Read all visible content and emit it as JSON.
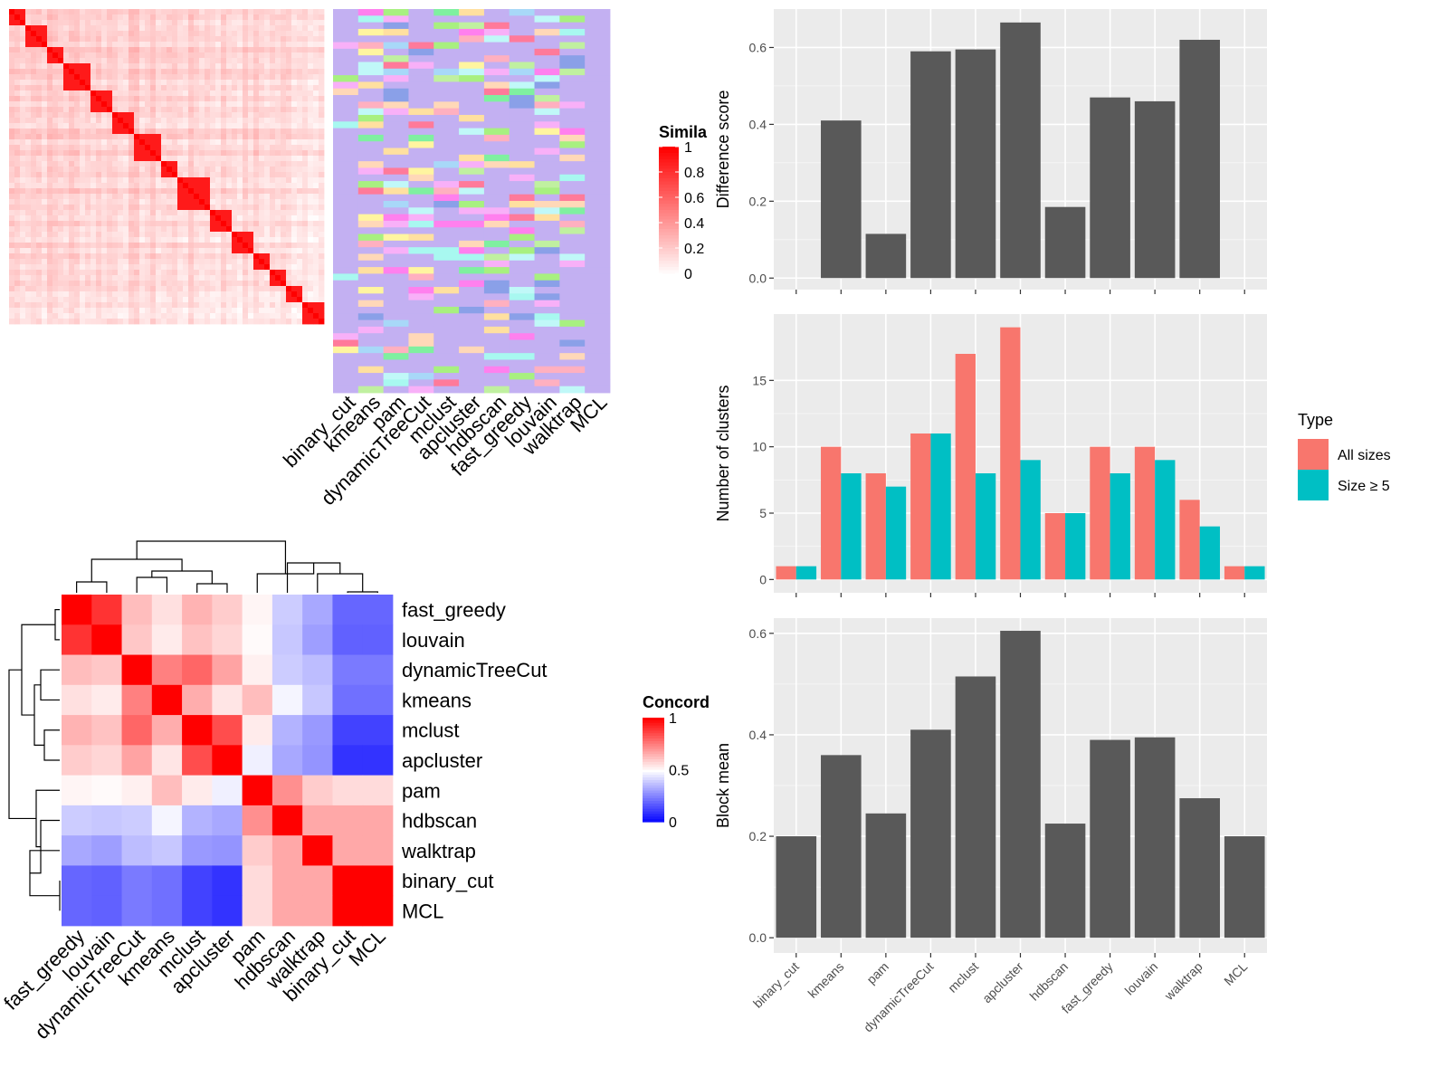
{
  "methods_x": [
    "binary_cut",
    "kmeans",
    "pam",
    "dynamicTreeCut",
    "mclust",
    "apcluster",
    "hdbscan",
    "fast_greedy",
    "louvain",
    "walktrap",
    "MCL"
  ],
  "similarity_legend": {
    "title": "Simila",
    "ticks": [
      "1",
      "0.8",
      "0.6",
      "0.4",
      "0.2",
      "0"
    ]
  },
  "concordance_legend": {
    "title": "Concord",
    "ticks": [
      "1",
      "0.5",
      "0"
    ]
  },
  "type_legend": {
    "title": "Type",
    "items": [
      {
        "label": "All sizes",
        "color": "#F8766D"
      },
      {
        "label": "Size ≥ 5",
        "color": "#00BFC4"
      }
    ]
  },
  "concordance_order": [
    "fast_greedy",
    "louvain",
    "dynamicTreeCut",
    "kmeans",
    "mclust",
    "apcluster",
    "pam",
    "hdbscan",
    "walktrap",
    "binary_cut",
    "MCL"
  ],
  "chart_data": [
    {
      "type": "bar",
      "categories": [
        "binary_cut",
        "kmeans",
        "pam",
        "dynamicTreeCut",
        "mclust",
        "apcluster",
        "hdbscan",
        "fast_greedy",
        "louvain",
        "walktrap",
        "MCL"
      ],
      "values": [
        0,
        0.41,
        0.115,
        0.59,
        0.595,
        0.665,
        0.185,
        0.47,
        0.46,
        0.62,
        0
      ],
      "ylabel": "Difference score",
      "yticks": [
        0.0,
        0.2,
        0.4,
        0.6
      ],
      "ylim": [
        -0.03,
        0.7
      ],
      "color": "#595959"
    },
    {
      "type": "bar",
      "categories": [
        "binary_cut",
        "kmeans",
        "pam",
        "dynamicTreeCut",
        "mclust",
        "apcluster",
        "hdbscan",
        "fast_greedy",
        "louvain",
        "walktrap",
        "MCL"
      ],
      "series": [
        {
          "name": "All sizes",
          "values": [
            1,
            10,
            8,
            11,
            17,
            19,
            5,
            10,
            10,
            6,
            1
          ]
        },
        {
          "name": "Size ≥ 5",
          "values": [
            1,
            8,
            7,
            11,
            8,
            9,
            5,
            8,
            9,
            4,
            1
          ]
        }
      ],
      "ylabel": "Number of clusters",
      "yticks": [
        0,
        5,
        10,
        15
      ],
      "ylim": [
        -1,
        20
      ],
      "legend": "right"
    },
    {
      "type": "bar",
      "categories": [
        "binary_cut",
        "kmeans",
        "pam",
        "dynamicTreeCut",
        "mclust",
        "apcluster",
        "hdbscan",
        "fast_greedy",
        "louvain",
        "walktrap",
        "MCL"
      ],
      "values": [
        0.2,
        0.36,
        0.245,
        0.41,
        0.515,
        0.605,
        0.225,
        0.39,
        0.395,
        0.275,
        0.2
      ],
      "ylabel": "Block mean",
      "yticks": [
        0.0,
        0.2,
        0.4,
        0.6
      ],
      "ylim": [
        -0.03,
        0.63
      ],
      "color": "#595959"
    },
    {
      "type": "heatmap",
      "rows": [
        "fast_greedy",
        "louvain",
        "dynamicTreeCut",
        "kmeans",
        "mclust",
        "apcluster",
        "pam",
        "hdbscan",
        "walktrap",
        "binary_cut",
        "MCL"
      ],
      "columns": [
        "fast_greedy",
        "louvain",
        "dynamicTreeCut",
        "kmeans",
        "mclust",
        "apcluster",
        "pam",
        "hdbscan",
        "walktrap",
        "binary_cut",
        "MCL"
      ],
      "values": [
        [
          1.0,
          0.9,
          0.63,
          0.56,
          0.65,
          0.6,
          0.52,
          0.4,
          0.33,
          0.2,
          0.2
        ],
        [
          0.9,
          1.0,
          0.61,
          0.54,
          0.62,
          0.58,
          0.51,
          0.39,
          0.31,
          0.19,
          0.19
        ],
        [
          0.63,
          0.61,
          1.0,
          0.75,
          0.8,
          0.68,
          0.53,
          0.4,
          0.37,
          0.24,
          0.24
        ],
        [
          0.56,
          0.54,
          0.75,
          1.0,
          0.66,
          0.55,
          0.63,
          0.48,
          0.39,
          0.22,
          0.22
        ],
        [
          0.65,
          0.62,
          0.8,
          0.66,
          1.0,
          0.85,
          0.54,
          0.35,
          0.3,
          0.13,
          0.13
        ],
        [
          0.6,
          0.58,
          0.68,
          0.55,
          0.85,
          1.0,
          0.47,
          0.33,
          0.29,
          0.1,
          0.1
        ],
        [
          0.52,
          0.51,
          0.53,
          0.63,
          0.54,
          0.47,
          1.0,
          0.72,
          0.6,
          0.57,
          0.57
        ],
        [
          0.4,
          0.39,
          0.4,
          0.48,
          0.35,
          0.33,
          0.72,
          1.0,
          0.67,
          0.67,
          0.67
        ],
        [
          0.33,
          0.31,
          0.37,
          0.39,
          0.3,
          0.29,
          0.6,
          0.67,
          1.0,
          0.67,
          0.67
        ],
        [
          0.2,
          0.19,
          0.24,
          0.22,
          0.13,
          0.1,
          0.57,
          0.67,
          0.67,
          1.0,
          1.0
        ],
        [
          0.2,
          0.19,
          0.24,
          0.22,
          0.13,
          0.1,
          0.57,
          0.67,
          0.67,
          1.0,
          1.0
        ]
      ]
    }
  ]
}
